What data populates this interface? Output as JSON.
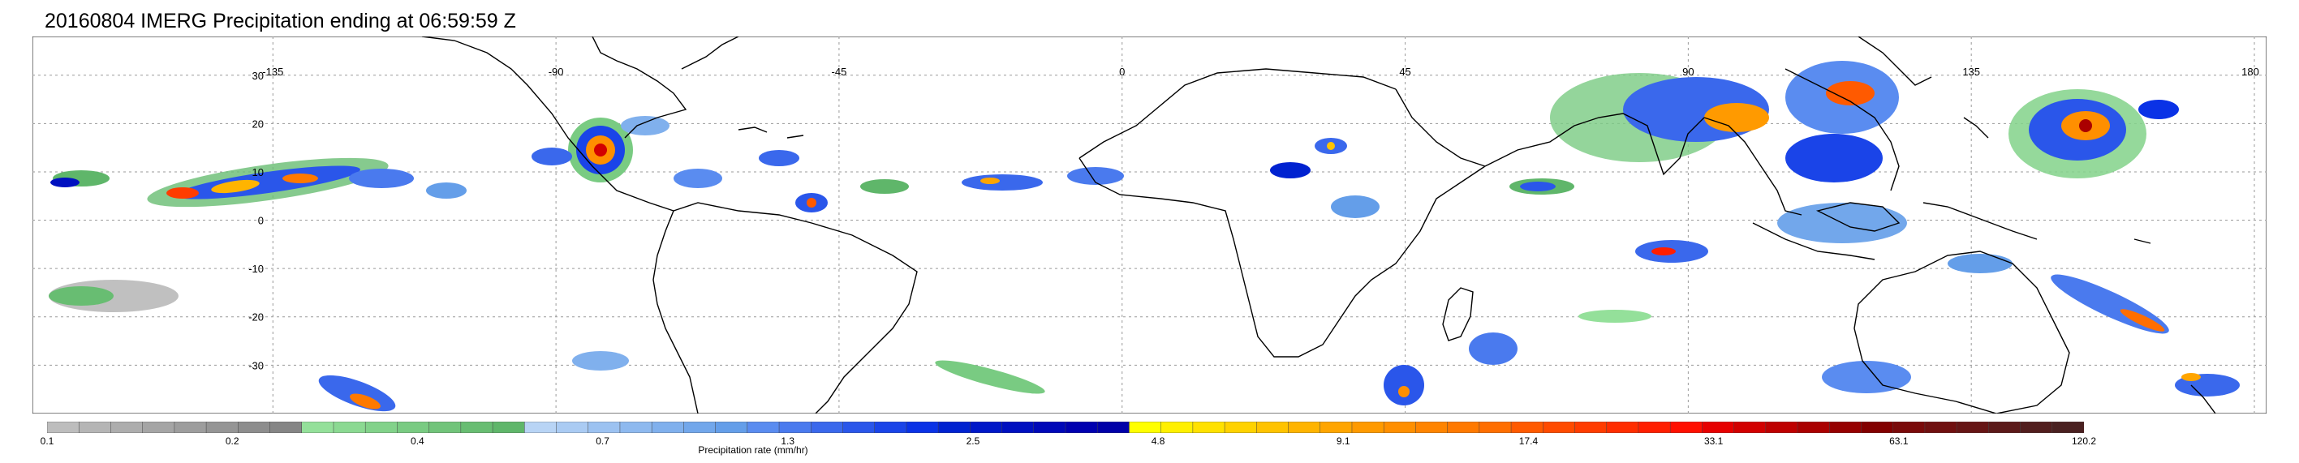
{
  "title": "20160804 IMERG Precipitation ending at 06:59:59 Z",
  "map": {
    "lon_labels": [
      "-135",
      "-90",
      "-45",
      "0",
      "45",
      "90",
      "135",
      "180"
    ],
    "lat_labels": [
      "30",
      "20",
      "10",
      "0",
      "-10",
      "-20",
      "-30"
    ],
    "gridline_color": "#9a9a9a",
    "coastline_color": "#000000"
  },
  "colorbar": {
    "title": "Precipitation rate (mm/hr)",
    "tick_labels": [
      "0.1",
      "0.2",
      "0.4",
      "0.7",
      "1.3",
      "2.5",
      "4.8",
      "9.1",
      "17.4",
      "33.1",
      "63.1",
      "120.2"
    ],
    "colors": [
      "#bdbdbd",
      "#b5b5b5",
      "#adadad",
      "#a5a5a5",
      "#9d9d9d",
      "#959595",
      "#8d8d8d",
      "#858585",
      "#94e09a",
      "#8bd992",
      "#82d28a",
      "#79cb82",
      "#71c47a",
      "#68bd72",
      "#5fb66a",
      "#b8d4f5",
      "#aacbf3",
      "#9cc2f1",
      "#8eb9ef",
      "#80b0ed",
      "#72a7eb",
      "#649ee9",
      "#5a8cf0",
      "#4a7aee",
      "#3a68ec",
      "#2a56ea",
      "#1a44e8",
      "#0a32e6",
      "#0022d0",
      "#0018c8",
      "#0010c0",
      "#0008b8",
      "#0000b0",
      "#0000a8",
      "#ffff00",
      "#fff000",
      "#ffe100",
      "#ffd200",
      "#ffc300",
      "#ffb400",
      "#ffa500",
      "#ff9a00",
      "#ff8f00",
      "#ff8400",
      "#ff7900",
      "#ff6e00",
      "#ff5a00",
      "#ff4b00",
      "#ff3c00",
      "#ff2d00",
      "#ff1e00",
      "#ff0f00",
      "#e60000",
      "#d20000",
      "#be0000",
      "#aa0000",
      "#960000",
      "#820000",
      "#7a0a0a",
      "#701010",
      "#661515",
      "#5c1a1a",
      "#521e1e",
      "#4a2020"
    ]
  }
}
